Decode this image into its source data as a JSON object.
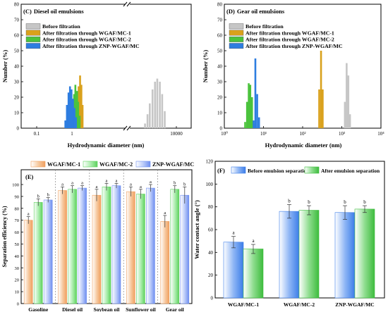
{
  "chart_data": [
    {
      "panel": "(C)",
      "type": "bar",
      "title": "Diesel oil emulsions",
      "xlabel": "Hydrodynamic diameter (nm)",
      "ylabel": "Number (%)",
      "xscale": "log",
      "xlim": [
        0.1,
        10000
      ],
      "ylim": [
        0,
        80
      ],
      "xticks": [
        {
          "v": 0.1,
          "t": "0.1"
        },
        {
          "v": 1,
          "t": "1"
        },
        {
          "v": 10000,
          "t": "10000"
        }
      ],
      "yticks": [
        0,
        10,
        20,
        30,
        40,
        50,
        60,
        70,
        80
      ],
      "axis_break": "x",
      "legend_position": "top-left",
      "series": [
        {
          "name": "Before filtration",
          "color": "#c6c6c6",
          "points": [
            [
              3000,
              3
            ],
            [
              3300,
              9
            ],
            [
              3600,
              16
            ],
            [
              4000,
              25
            ],
            [
              4400,
              30
            ],
            [
              4800,
              32
            ],
            [
              5300,
              30
            ],
            [
              5800,
              22
            ],
            [
              6400,
              11
            ]
          ]
        },
        {
          "name": "After filtration through WGAF/MC-1",
          "color": "#d9a11c",
          "points": [
            [
              1.2,
              4
            ],
            [
              1.3,
              9
            ],
            [
              1.4,
              18
            ],
            [
              1.55,
              27
            ],
            [
              1.7,
              34
            ],
            [
              1.85,
              28
            ],
            [
              2.0,
              15
            ]
          ]
        },
        {
          "name": "After filtration through WGAF/MC-2",
          "color": "#4bc33c",
          "points": [
            [
              0.95,
              6
            ],
            [
              1.05,
              13
            ],
            [
              1.15,
              22
            ],
            [
              1.25,
              28
            ],
            [
              1.4,
              24
            ],
            [
              1.5,
              17
            ],
            [
              1.65,
              8
            ]
          ]
        },
        {
          "name": "After filtration through ZNP-WGAF/MC",
          "color": "#2d7de0",
          "points": [
            [
              0.65,
              5
            ],
            [
              0.72,
              15
            ],
            [
              0.8,
              23
            ],
            [
              0.88,
              27
            ],
            [
              0.97,
              25
            ],
            [
              1.07,
              19
            ],
            [
              1.18,
              13
            ],
            [
              1.3,
              7
            ]
          ]
        }
      ]
    },
    {
      "panel": "(D)",
      "type": "bar",
      "title": "Gear oil emulsions",
      "xlabel": "Hydrodynamic diameter (nm)",
      "ylabel": "Number (%)",
      "xscale": "log",
      "xlim": [
        1,
        10000
      ],
      "ylim": [
        0,
        80
      ],
      "xticks": [
        {
          "v": 1,
          "t": "10⁰"
        },
        {
          "v": 10,
          "t": "10¹"
        },
        {
          "v": 100,
          "t": "10²"
        },
        {
          "v": 1000,
          "t": "10³"
        },
        {
          "v": 10000,
          "t": "10⁴"
        }
      ],
      "yticks": [
        0,
        10,
        20,
        30,
        40,
        50,
        60,
        70,
        80
      ],
      "legend_position": "top-left",
      "series": [
        {
          "name": "Before filtration",
          "color": "#c6c6c6",
          "points": [
            [
              1200,
              17
            ],
            [
              1330,
              42
            ],
            [
              1470,
              34
            ],
            [
              1620,
              9
            ]
          ]
        },
        {
          "name": "After filtration through WGAF/MC-1",
          "color": "#d9a11c",
          "points": [
            [
              265,
              25
            ],
            [
              295,
              50
            ],
            [
              325,
              25
            ]
          ]
        },
        {
          "name": "After filtration through WGAF/MC-2",
          "color": "#4bc33c",
          "points": [
            [
              3.4,
              4
            ],
            [
              3.8,
              17
            ],
            [
              4.2,
              29
            ],
            [
              4.6,
              28
            ],
            [
              5.1,
              20
            ],
            [
              5.6,
              3
            ]
          ]
        },
        {
          "name": "After filtration through ZNP-WGAF/MC",
          "color": "#2d7de0",
          "points": [
            [
              5.6,
              5
            ],
            [
              6.2,
              45
            ],
            [
              6.9,
              22
            ],
            [
              7.7,
              7
            ]
          ]
        }
      ]
    },
    {
      "panel": "(E)",
      "type": "bar",
      "title": "",
      "xlabel": "",
      "ylabel": "Separation efficiency (%)",
      "ylim": [
        0,
        100
      ],
      "yticks": [
        0,
        10,
        20,
        30,
        40,
        50,
        60,
        70,
        80,
        90,
        100
      ],
      "legend_position": "top",
      "categories": [
        "Gasoline",
        "Diesel oil",
        "Soybean oil",
        "Sunflower oil",
        "Gear oil"
      ],
      "series": [
        {
          "name": "WGAF/MC-1",
          "color": "#f0a060",
          "values": [
            70,
            95,
            91,
            94,
            69
          ],
          "errors": [
            3,
            3,
            5,
            4,
            5
          ],
          "letters": [
            "a",
            "a",
            "a",
            "a",
            "a"
          ]
        },
        {
          "name": "WGAF/MC-2",
          "color": "#5ed25e",
          "values": [
            85,
            96,
            98,
            92,
            96
          ],
          "errors": [
            3,
            3,
            3,
            4,
            3
          ],
          "letters": [
            "b",
            "a",
            "a",
            "a",
            "b"
          ]
        },
        {
          "name": "ZNP-WGAF/MC",
          "color": "#6f8ff0",
          "values": [
            87,
            97,
            99,
            97,
            91
          ],
          "errors": [
            2,
            2,
            2,
            3,
            7
          ],
          "letters": [
            "b",
            "a",
            "a",
            "a",
            "b"
          ]
        }
      ]
    },
    {
      "panel": "(F)",
      "type": "bar",
      "title": "",
      "xlabel": "",
      "ylabel": "Water contact angle (°)",
      "ylim": [
        0,
        120
      ],
      "yticks": [
        0,
        20,
        40,
        60,
        80,
        100,
        120
      ],
      "legend_position": "top",
      "categories": [
        "WGAF/MC-1",
        "WGAF/MC-2",
        "ZNP-WGAF/MC"
      ],
      "series": [
        {
          "name": "Before emulsion separation",
          "color": "#3c7de8",
          "values": [
            49,
            76,
            75
          ],
          "errors": [
            5,
            6,
            6
          ],
          "letters": [
            "a",
            "b",
            "b"
          ]
        },
        {
          "name": "After emulsion separation",
          "color": "#3dbc3d",
          "values": [
            43,
            77,
            78
          ],
          "errors": [
            4,
            4,
            3
          ],
          "letters": [
            "a",
            "b",
            "b"
          ]
        }
      ]
    }
  ]
}
